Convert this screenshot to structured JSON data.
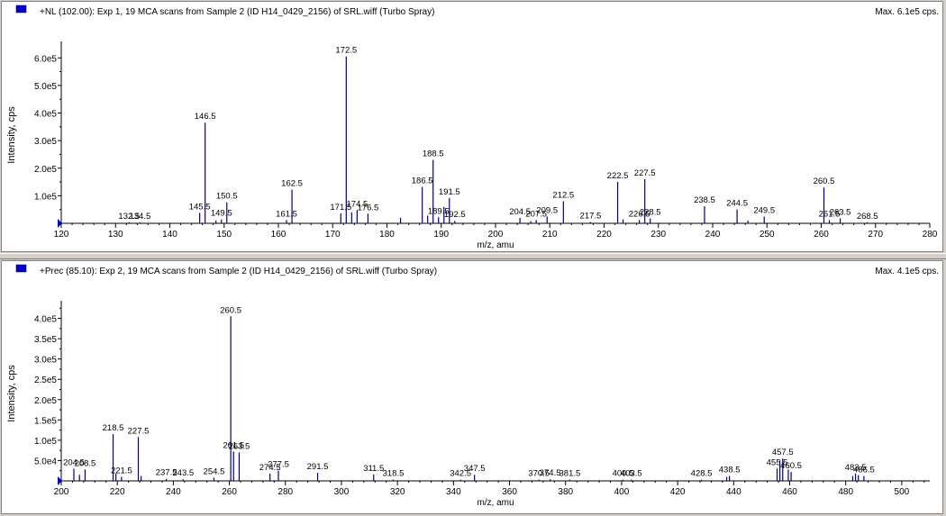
{
  "colors": {
    "series": "#00007f",
    "axis": "#000000",
    "marker": "#0000cc"
  },
  "chart_data": [
    {
      "type": "bar",
      "title": "+NL (102.00): Exp 1, 19 MCA scans from Sample 2 (ID H14_0429_2156) of SRL.wiff (Turbo Spray)",
      "max_label": "Max. 6.1e5 cps.",
      "xlabel": "m/z, amu",
      "ylabel": "Intensity, cps",
      "xlim": [
        120,
        280
      ],
      "ylim": [
        0,
        640000
      ],
      "x_ticks": [
        120,
        130,
        140,
        150,
        160,
        170,
        180,
        190,
        200,
        210,
        220,
        230,
        240,
        250,
        260,
        270,
        280
      ],
      "y_ticks": [
        {
          "value": 100000,
          "label": "1.0e5"
        },
        {
          "value": 200000,
          "label": "2.0e5"
        },
        {
          "value": 300000,
          "label": "3.0e5"
        },
        {
          "value": 400000,
          "label": "4.0e5"
        },
        {
          "value": 500000,
          "label": "5.0e5"
        },
        {
          "value": 600000,
          "label": "6.0e5"
        }
      ],
      "peaks": [
        {
          "x": 132.5,
          "y": 4000,
          "label": "132.5"
        },
        {
          "x": 134.5,
          "y": 3000,
          "label": "134.5"
        },
        {
          "x": 145.5,
          "y": 38000,
          "label": "145.5"
        },
        {
          "x": 146.5,
          "y": 365000,
          "label": "146.5"
        },
        {
          "x": 148.5,
          "y": 10000
        },
        {
          "x": 149.5,
          "y": 14000,
          "label": "149.5"
        },
        {
          "x": 150.5,
          "y": 76000,
          "label": "150.5"
        },
        {
          "x": 161.5,
          "y": 12000,
          "label": "161.5"
        },
        {
          "x": 162.5,
          "y": 122000,
          "label": "162.5"
        },
        {
          "x": 171.5,
          "y": 36000,
          "label": "171.5"
        },
        {
          "x": 172.5,
          "y": 605000,
          "label": "172.5"
        },
        {
          "x": 173.5,
          "y": 40000
        },
        {
          "x": 174.5,
          "y": 48000,
          "label": "174.5"
        },
        {
          "x": 176.5,
          "y": 35000,
          "label": "176.5"
        },
        {
          "x": 182.5,
          "y": 20000
        },
        {
          "x": 186.5,
          "y": 132000,
          "label": "186.5"
        },
        {
          "x": 187.5,
          "y": 28000
        },
        {
          "x": 188.5,
          "y": 230000,
          "label": "188.5"
        },
        {
          "x": 189.5,
          "y": 22000,
          "label": "189.5"
        },
        {
          "x": 190.5,
          "y": 60000
        },
        {
          "x": 191.5,
          "y": 92000,
          "label": "191.5"
        },
        {
          "x": 192.5,
          "y": 9000,
          "label": "192.5"
        },
        {
          "x": 204.5,
          "y": 20000,
          "label": "204.5"
        },
        {
          "x": 206.5,
          "y": 8000
        },
        {
          "x": 207.5,
          "y": 12000,
          "label": "207.5"
        },
        {
          "x": 209.5,
          "y": 25000,
          "label": "209.5"
        },
        {
          "x": 212.5,
          "y": 80000,
          "label": "212.5"
        },
        {
          "x": 217.5,
          "y": 5000,
          "label": "217.5"
        },
        {
          "x": 222.5,
          "y": 150000,
          "label": "222.5"
        },
        {
          "x": 223.5,
          "y": 14000
        },
        {
          "x": 226.5,
          "y": 12000,
          "label": "226.5"
        },
        {
          "x": 227.5,
          "y": 160000,
          "label": "227.5"
        },
        {
          "x": 228.5,
          "y": 18000,
          "label": "228.5"
        },
        {
          "x": 238.5,
          "y": 62000,
          "label": "238.5"
        },
        {
          "x": 244.5,
          "y": 50000,
          "label": "244.5"
        },
        {
          "x": 246.5,
          "y": 10000
        },
        {
          "x": 249.5,
          "y": 24000,
          "label": "249.5"
        },
        {
          "x": 260.5,
          "y": 130000,
          "label": "260.5"
        },
        {
          "x": 261.5,
          "y": 12000,
          "label": "261.5"
        },
        {
          "x": 263.5,
          "y": 18000,
          "label": "263.5"
        },
        {
          "x": 268.5,
          "y": 4000,
          "label": "268.5"
        }
      ]
    },
    {
      "type": "bar",
      "title": "+Prec (85.10): Exp 2, 19 MCA scans from Sample 2 (ID H14_0429_2156) of SRL.wiff (Turbo Spray)",
      "max_label": "Max. 4.1e5 cps.",
      "xlabel": "m/z, amu",
      "ylabel": "Intensity, cps",
      "xlim": [
        200,
        510
      ],
      "ylim": [
        0,
        430000
      ],
      "x_ticks": [
        200,
        220,
        240,
        260,
        280,
        300,
        320,
        340,
        360,
        380,
        400,
        420,
        440,
        460,
        480,
        500
      ],
      "y_ticks": [
        {
          "value": 50000,
          "label": "5.0e4"
        },
        {
          "value": 100000,
          "label": "1.0e5"
        },
        {
          "value": 150000,
          "label": "1.5e5"
        },
        {
          "value": 200000,
          "label": "2.0e5"
        },
        {
          "value": 250000,
          "label": "2.5e5"
        },
        {
          "value": 300000,
          "label": "3.0e5"
        },
        {
          "value": 350000,
          "label": "3.5e5"
        },
        {
          "value": 400000,
          "label": "4.0e5"
        }
      ],
      "peaks": [
        {
          "x": 204.5,
          "y": 30000,
          "label": "204.5"
        },
        {
          "x": 206.5,
          "y": 15000
        },
        {
          "x": 208.5,
          "y": 28000,
          "label": "208.5"
        },
        {
          "x": 218.5,
          "y": 115000,
          "label": "218.5"
        },
        {
          "x": 219.5,
          "y": 18000
        },
        {
          "x": 221.5,
          "y": 10000,
          "label": "221.5"
        },
        {
          "x": 227.5,
          "y": 108000,
          "label": "227.5"
        },
        {
          "x": 228.5,
          "y": 12000
        },
        {
          "x": 237.5,
          "y": 5000,
          "label": "237.5"
        },
        {
          "x": 243.5,
          "y": 4000,
          "label": "243.5"
        },
        {
          "x": 254.5,
          "y": 8000,
          "label": "254.5"
        },
        {
          "x": 260.5,
          "y": 405000,
          "label": "260.5"
        },
        {
          "x": 261.5,
          "y": 72000,
          "label": "261.5"
        },
        {
          "x": 263.5,
          "y": 70000,
          "label": "263.5"
        },
        {
          "x": 274.5,
          "y": 18000,
          "label": "274.5"
        },
        {
          "x": 277.5,
          "y": 25000,
          "label": "277.5"
        },
        {
          "x": 291.5,
          "y": 20000,
          "label": "291.5"
        },
        {
          "x": 311.5,
          "y": 16000,
          "label": "311.5"
        },
        {
          "x": 318.5,
          "y": 3000,
          "label": "318.5"
        },
        {
          "x": 342.5,
          "y": 3000,
          "label": "342.5"
        },
        {
          "x": 347.5,
          "y": 15000,
          "label": "347.5"
        },
        {
          "x": 370.5,
          "y": 3000,
          "label": "370.5"
        },
        {
          "x": 374.5,
          "y": 4000,
          "label": "374.5"
        },
        {
          "x": 381.5,
          "y": 3000,
          "label": "381.5"
        },
        {
          "x": 400.5,
          "y": 3000,
          "label": "400.5"
        },
        {
          "x": 403.5,
          "y": 3000,
          "label": "403.5"
        },
        {
          "x": 428.5,
          "y": 3000,
          "label": "428.5"
        },
        {
          "x": 437.5,
          "y": 10000
        },
        {
          "x": 438.5,
          "y": 12000,
          "label": "438.5"
        },
        {
          "x": 455.5,
          "y": 30000,
          "label": "455.5"
        },
        {
          "x": 456.5,
          "y": 50000
        },
        {
          "x": 457.5,
          "y": 55000,
          "label": "457.5"
        },
        {
          "x": 459.5,
          "y": 28000
        },
        {
          "x": 460.5,
          "y": 22000,
          "label": "460.5"
        },
        {
          "x": 482.5,
          "y": 12000
        },
        {
          "x": 483.5,
          "y": 18000,
          "label": "483.5"
        },
        {
          "x": 484.5,
          "y": 14000
        },
        {
          "x": 486.5,
          "y": 12000,
          "label": "486.5"
        }
      ]
    }
  ]
}
